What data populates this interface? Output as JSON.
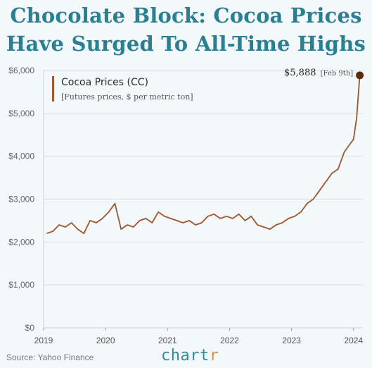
{
  "title_line1": "Chocolate Block: Cocoa Prices",
  "title_line2": "Have Surged To All-Time Highs",
  "source": "Source: Yahoo Finance",
  "brand": {
    "main": "chart",
    "accent": "r"
  },
  "legend": {
    "title": "Cocoa Prices (CC)",
    "subtitle": "[Futures prices, $ per metric ton]"
  },
  "last_point": {
    "value_label": "$5,888",
    "date_label": "[Feb 9th]"
  },
  "colors": {
    "line": "#a0552a",
    "marker": "#5a2a14",
    "title": "#2b7f92",
    "grid": "#d6e3e8",
    "background": "#f3f8fa"
  },
  "chart_data": {
    "type": "line",
    "title": "Chocolate Block: Cocoa Prices Have Surged To All-Time Highs",
    "series": [
      {
        "name": "Cocoa Prices (CC)",
        "x": [
          2019.05,
          2019.15,
          2019.25,
          2019.35,
          2019.45,
          2019.55,
          2019.65,
          2019.75,
          2019.85,
          2019.95,
          2020.05,
          2020.15,
          2020.25,
          2020.35,
          2020.45,
          2020.55,
          2020.65,
          2020.75,
          2020.85,
          2020.95,
          2021.05,
          2021.15,
          2021.25,
          2021.35,
          2021.45,
          2021.55,
          2021.65,
          2021.75,
          2021.85,
          2021.95,
          2022.05,
          2022.15,
          2022.25,
          2022.35,
          2022.45,
          2022.55,
          2022.65,
          2022.75,
          2022.85,
          2022.95,
          2023.05,
          2023.15,
          2023.25,
          2023.35,
          2023.45,
          2023.55,
          2023.65,
          2023.75,
          2023.85,
          2023.95,
          2024.0,
          2024.05,
          2024.1
        ],
        "values": [
          2200,
          2250,
          2400,
          2350,
          2450,
          2300,
          2200,
          2500,
          2450,
          2550,
          2700,
          2900,
          2300,
          2400,
          2350,
          2500,
          2550,
          2450,
          2700,
          2600,
          2550,
          2500,
          2450,
          2500,
          2400,
          2450,
          2600,
          2650,
          2550,
          2600,
          2550,
          2650,
          2500,
          2600,
          2400,
          2350,
          2300,
          2400,
          2450,
          2550,
          2600,
          2700,
          2900,
          3000,
          3200,
          3400,
          3600,
          3700,
          4100,
          4300,
          4400,
          4900,
          5888
        ]
      }
    ],
    "x_ticks": [
      "2019",
      "2020",
      "2021",
      "2022",
      "2023",
      "2024"
    ],
    "y_ticks": [
      "$0",
      "$1,000",
      "$2,000",
      "$3,000",
      "$4,000",
      "$5,000",
      "$6,000"
    ],
    "xlim": [
      2019,
      2024.15
    ],
    "ylim": [
      0,
      6000
    ],
    "grid": "horizontal"
  }
}
